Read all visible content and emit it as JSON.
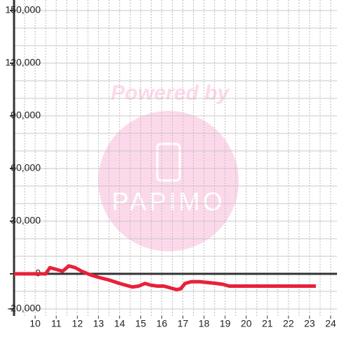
{
  "chart_data": {
    "type": "line",
    "watermark": "Powered by",
    "logo": "PAPIMO",
    "x": [
      9,
      10.5,
      10.7,
      11,
      11.3,
      11.6,
      11.9,
      12.2,
      12.6,
      13,
      13.5,
      14,
      14.3,
      14.6,
      14.9,
      15.2,
      15.5,
      15.8,
      16.1,
      16.4,
      16.7,
      16.9,
      17.1,
      17.4,
      17.8,
      18.2,
      18.6,
      18.9,
      19.2,
      20,
      23.3
    ],
    "series": [
      {
        "color": "#e8213a",
        "values": [
          0,
          0,
          3500,
          2500,
          1500,
          4500,
          3500,
          1500,
          -500,
          -2000,
          -3500,
          -5500,
          -6500,
          -7500,
          -7000,
          -5500,
          -6500,
          -7000,
          -7000,
          -8000,
          -9000,
          -8500,
          -5500,
          -4500,
          -4500,
          -5000,
          -5500,
          -6000,
          -7000,
          -7000,
          -7000
        ]
      }
    ],
    "xlim": [
      9,
      24.3
    ],
    "xticks": [
      10,
      11,
      12,
      13,
      14,
      15,
      16,
      17,
      18,
      19,
      20,
      21,
      22,
      23,
      24
    ],
    "xgrid": [
      9.5,
      10,
      10.5,
      11,
      11.5,
      12,
      12.5,
      13,
      13.5,
      14,
      14.5,
      15,
      15.5,
      16,
      16.5,
      17,
      17.5,
      18,
      18.5,
      19,
      19.5,
      20,
      20.5,
      21,
      21.5,
      22,
      22.5,
      23,
      23.5,
      24
    ],
    "ylim": [
      -24000,
      156000
    ],
    "yticks": [
      {
        "value": -20000,
        "label": "-20,000"
      },
      0,
      {
        "value": 30000,
        "label": "30,000"
      },
      {
        "value": 60000,
        "label": "60,000"
      },
      {
        "value": 90000,
        "label": "90,000"
      },
      {
        "value": 120000,
        "label": "120,000"
      },
      {
        "value": 150000,
        "label": "150,000"
      }
    ],
    "ygrid": [
      -20000,
      -10000,
      10000,
      20000,
      30000,
      40000,
      50000,
      60000,
      70000,
      80000,
      90000,
      100000,
      110000,
      120000,
      130000,
      140000,
      150000
    ]
  }
}
